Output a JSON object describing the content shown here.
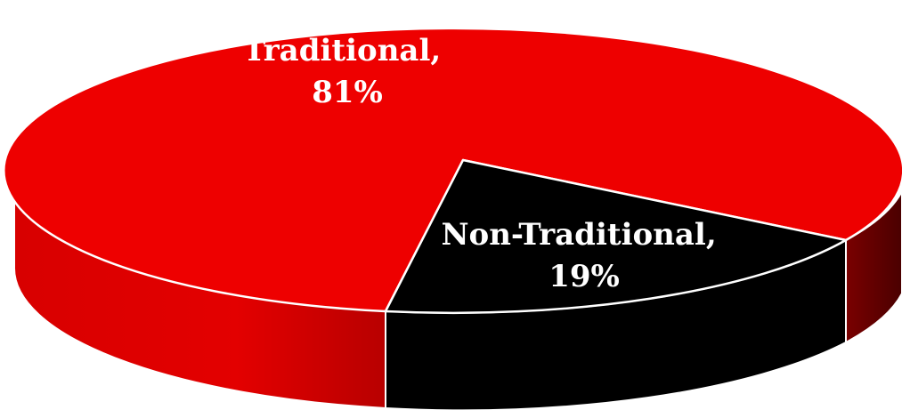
{
  "chart_data": {
    "type": "pie",
    "style": "3d",
    "slices": [
      {
        "label": "Traditional",
        "value": 81,
        "value_label": "81%",
        "color": "#ee0000",
        "side_color": "#c40000"
      },
      {
        "label": "Non-Traditional",
        "value": 19,
        "value_label": "19%",
        "color": "#000000",
        "side_color": "#000000"
      }
    ],
    "edge_color": "#ffffff",
    "background": "#ffffff"
  }
}
